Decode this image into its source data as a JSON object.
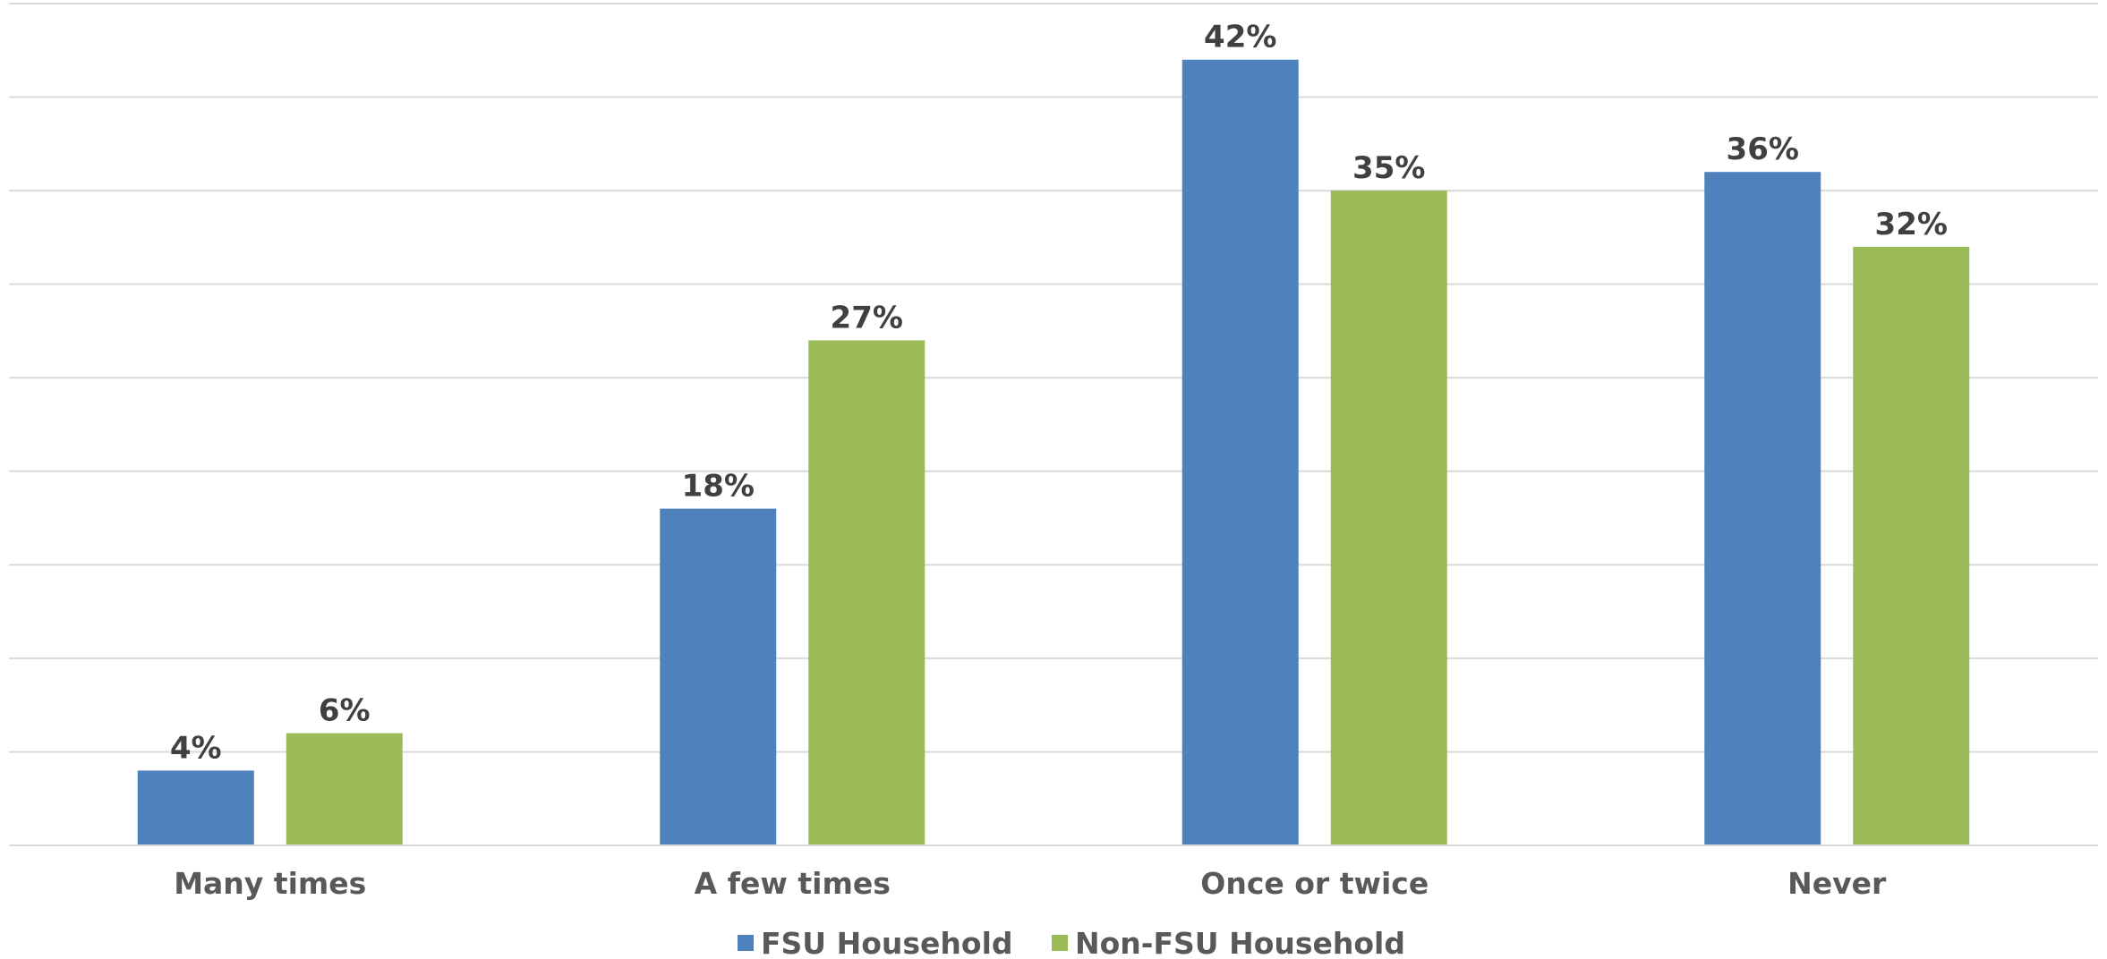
{
  "chart_data": {
    "type": "bar",
    "categories": [
      "Many times",
      "A few times",
      "Once or twice",
      "Never"
    ],
    "series": [
      {
        "name": "FSU Household",
        "color": "#4f81bd",
        "values": [
          4,
          18,
          42,
          36
        ],
        "labels": [
          "4%",
          "18%",
          "42%",
          "36%"
        ]
      },
      {
        "name": "Non-FSU Household",
        "color": "#9bbb59",
        "values": [
          6,
          27,
          35,
          32
        ],
        "labels": [
          "6%",
          "27%",
          "35%",
          "32%"
        ]
      }
    ],
    "ylim": [
      0,
      45
    ],
    "ytick_step": 5,
    "show_y_tick_labels": false,
    "grid": true,
    "legend_position": "bottom"
  }
}
